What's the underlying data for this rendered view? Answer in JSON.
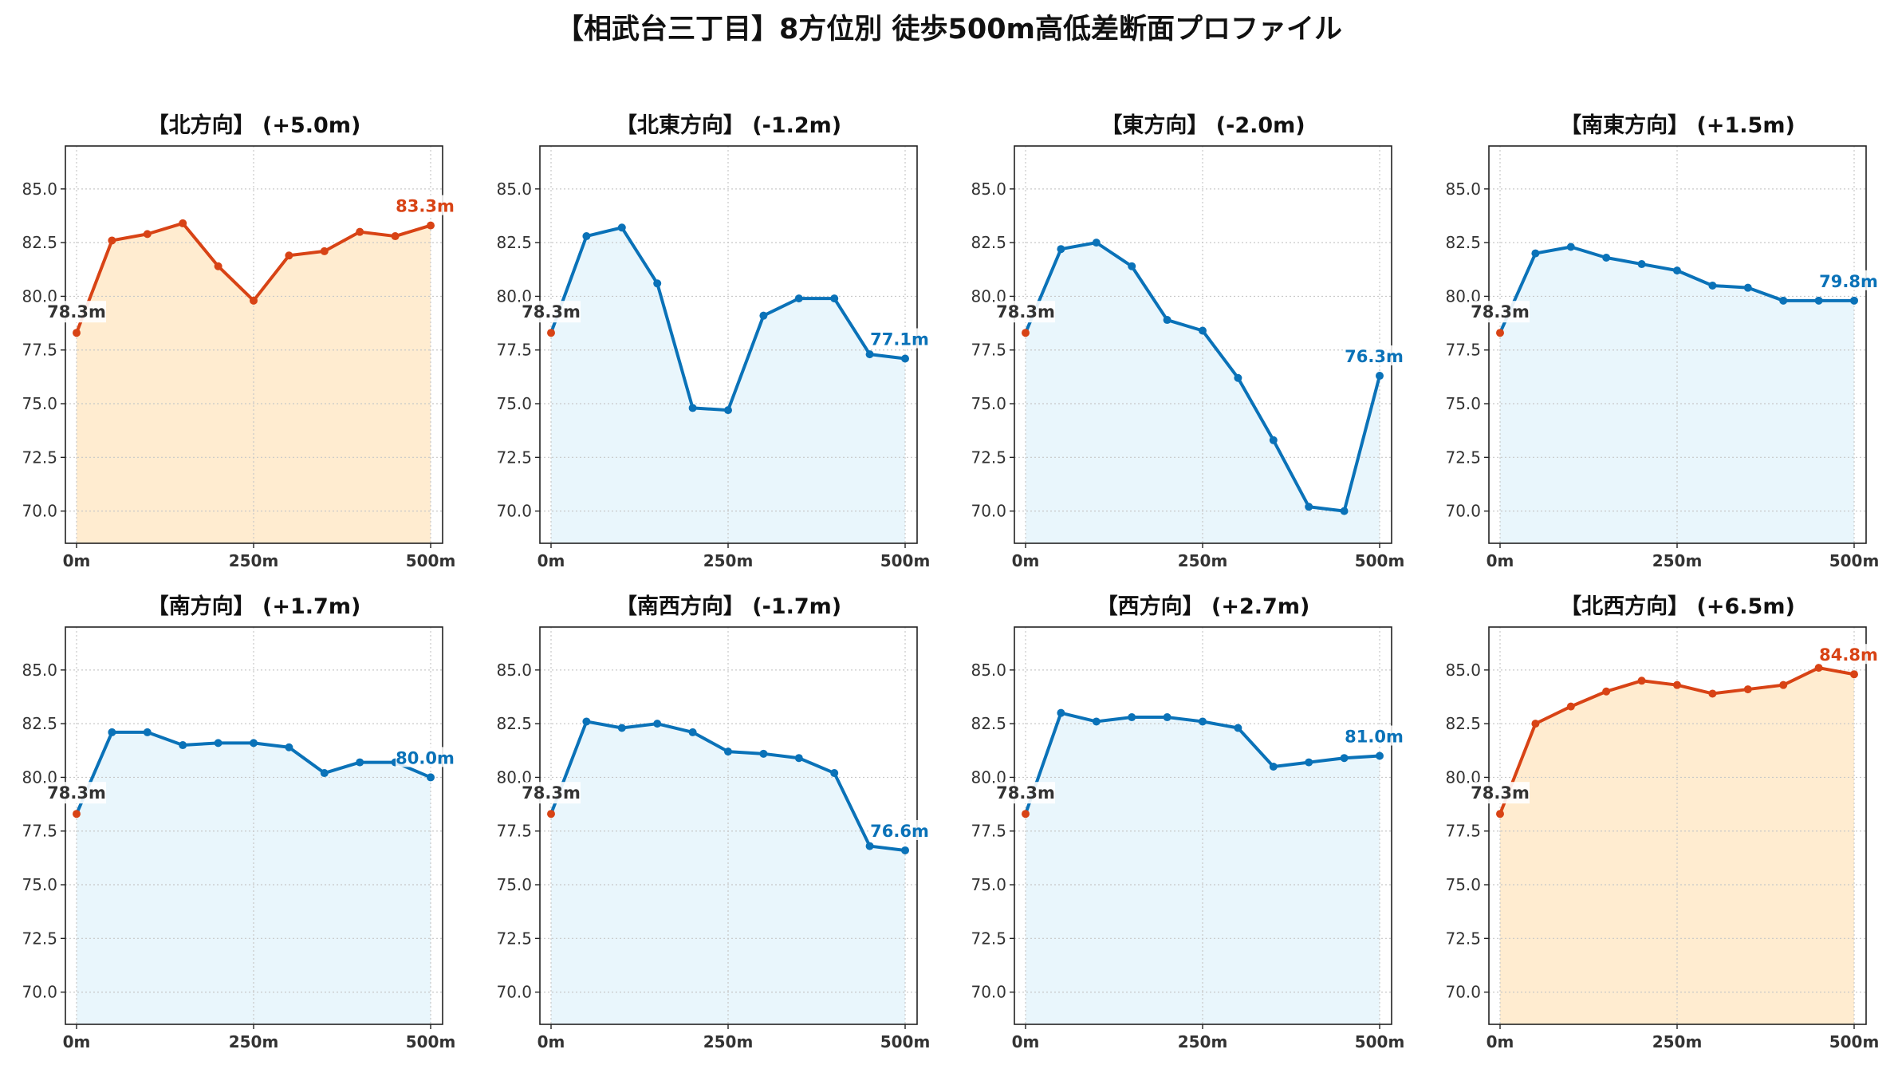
{
  "title": "【相武台三丁目】8方位別 徒歩500m高低差断面プロファイル",
  "colors": {
    "uphill_line": "#d84315",
    "uphill_fill": "#ffecd0",
    "downhill_line": "#0a72b8",
    "downhill_fill": "#e9f6fc",
    "start_label": "#333333"
  },
  "chart_data": [
    {
      "type": "area",
      "title": "【北方向】 (+5.0m)",
      "trend": "uphill",
      "x": [
        0,
        50,
        100,
        150,
        200,
        250,
        300,
        350,
        400,
        450,
        500
      ],
      "values": [
        78.3,
        82.6,
        82.9,
        83.4,
        81.4,
        79.8,
        81.9,
        82.1,
        83.0,
        82.8,
        83.3
      ],
      "start_label": "78.3m",
      "end_label": "83.3m",
      "ylim": [
        68.5,
        87.0
      ],
      "yticks": [
        "70.0",
        "72.5",
        "75.0",
        "77.5",
        "80.0",
        "82.5",
        "85.0"
      ],
      "xticks": [
        "0m",
        "250m",
        "500m"
      ],
      "grid": true
    },
    {
      "type": "area",
      "title": "【北東方向】 (-1.2m)",
      "trend": "downhill",
      "x": [
        0,
        50,
        100,
        150,
        200,
        250,
        300,
        350,
        400,
        450,
        500
      ],
      "values": [
        78.3,
        82.8,
        83.2,
        80.6,
        74.8,
        74.7,
        79.1,
        79.9,
        79.9,
        77.3,
        77.1
      ],
      "start_label": "78.3m",
      "end_label": "77.1m",
      "ylim": [
        68.5,
        87.0
      ],
      "yticks": [
        "70.0",
        "72.5",
        "75.0",
        "77.5",
        "80.0",
        "82.5",
        "85.0"
      ],
      "xticks": [
        "0m",
        "250m",
        "500m"
      ],
      "grid": true
    },
    {
      "type": "area",
      "title": "【東方向】 (-2.0m)",
      "trend": "downhill",
      "x": [
        0,
        50,
        100,
        150,
        200,
        250,
        300,
        350,
        400,
        450,
        500
      ],
      "values": [
        78.3,
        82.2,
        82.5,
        81.4,
        78.9,
        78.4,
        76.2,
        73.3,
        70.2,
        70.0,
        76.3
      ],
      "start_label": "78.3m",
      "end_label": "76.3m",
      "ylim": [
        68.5,
        87.0
      ],
      "yticks": [
        "70.0",
        "72.5",
        "75.0",
        "77.5",
        "80.0",
        "82.5",
        "85.0"
      ],
      "xticks": [
        "0m",
        "250m",
        "500m"
      ],
      "grid": true
    },
    {
      "type": "area",
      "title": "【南東方向】 (+1.5m)",
      "trend": "downhill",
      "x": [
        0,
        50,
        100,
        150,
        200,
        250,
        300,
        350,
        400,
        450,
        500
      ],
      "values": [
        78.3,
        82.0,
        82.3,
        81.8,
        81.5,
        81.2,
        80.5,
        80.4,
        79.8,
        79.8,
        79.8
      ],
      "start_label": "78.3m",
      "end_label": "79.8m",
      "ylim": [
        68.5,
        87.0
      ],
      "yticks": [
        "70.0",
        "72.5",
        "75.0",
        "77.5",
        "80.0",
        "82.5",
        "85.0"
      ],
      "xticks": [
        "0m",
        "250m",
        "500m"
      ],
      "grid": true
    },
    {
      "type": "area",
      "title": "【南方向】 (+1.7m)",
      "trend": "downhill",
      "x": [
        0,
        50,
        100,
        150,
        200,
        250,
        300,
        350,
        400,
        450,
        500
      ],
      "values": [
        78.3,
        82.1,
        82.1,
        81.5,
        81.6,
        81.6,
        81.4,
        80.2,
        80.7,
        80.7,
        80.0
      ],
      "start_label": "78.3m",
      "end_label": "80.0m",
      "ylim": [
        68.5,
        87.0
      ],
      "yticks": [
        "70.0",
        "72.5",
        "75.0",
        "77.5",
        "80.0",
        "82.5",
        "85.0"
      ],
      "xticks": [
        "0m",
        "250m",
        "500m"
      ],
      "grid": true
    },
    {
      "type": "area",
      "title": "【南西方向】 (-1.7m)",
      "trend": "downhill",
      "x": [
        0,
        50,
        100,
        150,
        200,
        250,
        300,
        350,
        400,
        450,
        500
      ],
      "values": [
        78.3,
        82.6,
        82.3,
        82.5,
        82.1,
        81.2,
        81.1,
        80.9,
        80.2,
        76.8,
        76.6
      ],
      "start_label": "78.3m",
      "end_label": "76.6m",
      "ylim": [
        68.5,
        87.0
      ],
      "yticks": [
        "70.0",
        "72.5",
        "75.0",
        "77.5",
        "80.0",
        "82.5",
        "85.0"
      ],
      "xticks": [
        "0m",
        "250m",
        "500m"
      ],
      "grid": true
    },
    {
      "type": "area",
      "title": "【西方向】 (+2.7m)",
      "trend": "downhill",
      "x": [
        0,
        50,
        100,
        150,
        200,
        250,
        300,
        350,
        400,
        450,
        500
      ],
      "values": [
        78.3,
        83.0,
        82.6,
        82.8,
        82.8,
        82.6,
        82.3,
        80.5,
        80.7,
        80.9,
        81.0
      ],
      "start_label": "78.3m",
      "end_label": "81.0m",
      "ylim": [
        68.5,
        87.0
      ],
      "yticks": [
        "70.0",
        "72.5",
        "75.0",
        "77.5",
        "80.0",
        "82.5",
        "85.0"
      ],
      "xticks": [
        "0m",
        "250m",
        "500m"
      ],
      "grid": true
    },
    {
      "type": "area",
      "title": "【北西方向】 (+6.5m)",
      "trend": "uphill",
      "x": [
        0,
        50,
        100,
        150,
        200,
        250,
        300,
        350,
        400,
        450,
        500
      ],
      "values": [
        78.3,
        82.5,
        83.3,
        84.0,
        84.5,
        84.3,
        83.9,
        84.1,
        84.3,
        85.1,
        84.8
      ],
      "start_label": "78.3m",
      "end_label": "84.8m",
      "ylim": [
        68.5,
        87.0
      ],
      "yticks": [
        "70.0",
        "72.5",
        "75.0",
        "77.5",
        "80.0",
        "82.5",
        "85.0"
      ],
      "xticks": [
        "0m",
        "250m",
        "500m"
      ],
      "grid": true
    }
  ]
}
